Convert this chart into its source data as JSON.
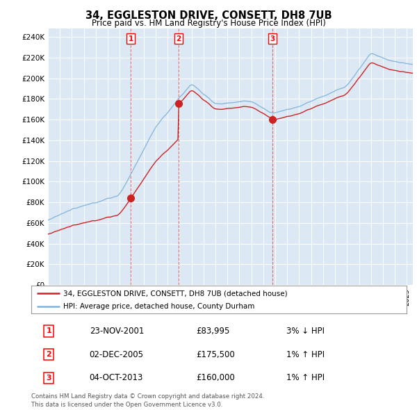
{
  "title": "34, EGGLESTON DRIVE, CONSETT, DH8 7UB",
  "subtitle": "Price paid vs. HM Land Registry's House Price Index (HPI)",
  "plot_bg_color": "#dce9f5",
  "ylabel_ticks": [
    "£0",
    "£20K",
    "£40K",
    "£60K",
    "£80K",
    "£100K",
    "£120K",
    "£140K",
    "£160K",
    "£180K",
    "£200K",
    "£220K",
    "£240K"
  ],
  "ytick_values": [
    0,
    20000,
    40000,
    60000,
    80000,
    100000,
    120000,
    140000,
    160000,
    180000,
    200000,
    220000,
    240000
  ],
  "ylim": [
    0,
    248000
  ],
  "xlim_start": 1995.0,
  "xlim_end": 2025.5,
  "sale_dates": [
    2001.92,
    2005.92,
    2013.75
  ],
  "sale_prices": [
    83995,
    175500,
    160000
  ],
  "sale_labels": [
    "1",
    "2",
    "3"
  ],
  "legend_line1": "34, EGGLESTON DRIVE, CONSETT, DH8 7UB (detached house)",
  "legend_line2": "HPI: Average price, detached house, County Durham",
  "table_rows": [
    [
      "1",
      "23-NOV-2001",
      "£83,995",
      "3% ↓ HPI"
    ],
    [
      "2",
      "02-DEC-2005",
      "£175,500",
      "1% ↑ HPI"
    ],
    [
      "3",
      "04-OCT-2013",
      "£160,000",
      "1% ↑ HPI"
    ]
  ],
  "footnote": "Contains HM Land Registry data © Crown copyright and database right 2024.\nThis data is licensed under the Open Government Licence v3.0.",
  "hpi_color": "#7fb3d9",
  "price_color": "#cc2222",
  "sale_marker_color": "#cc2222",
  "dashed_line_color": "#dd4444"
}
